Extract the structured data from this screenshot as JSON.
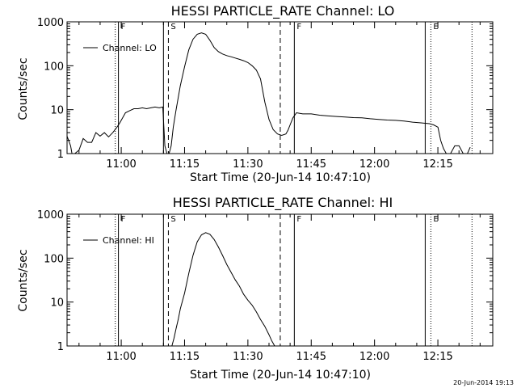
{
  "footer_timestamp": "20-Jun-2014 19:13",
  "chart_data": [
    {
      "type": "line",
      "title": "HESSI PARTICLE_RATE Channel: LO",
      "xlabel": "Start Time (20-Jun-14 10:47:10)",
      "ylabel": "Counts/sec",
      "log_y": true,
      "ylim": [
        1,
        1000
      ],
      "xlim": [
        "10:47:10",
        "12:28:00"
      ],
      "x_ticks": [
        "11:00",
        "11:15",
        "11:30",
        "11:45",
        "12:00",
        "12:15"
      ],
      "y_ticks": [
        "1",
        "10",
        "100",
        "1000"
      ],
      "legend": {
        "position": "top-left",
        "entries": [
          "Channel: LO"
        ]
      },
      "vertical_markers": [
        {
          "time": "10:58:35",
          "style": "dotted"
        },
        {
          "time": "10:59:20",
          "style": "solid",
          "label": "F"
        },
        {
          "time": "11:10:00",
          "style": "solid"
        },
        {
          "time": "11:11:10",
          "style": "dashed",
          "label": "S"
        },
        {
          "time": "11:37:40",
          "style": "dashed"
        },
        {
          "time": "11:41:00",
          "style": "solid",
          "label": "F"
        },
        {
          "time": "12:12:00",
          "style": "solid"
        },
        {
          "time": "12:13:20",
          "style": "dotted",
          "label": "E"
        },
        {
          "time": "12:23:05",
          "style": "dotted"
        }
      ],
      "series": [
        {
          "name": "Channel: LO",
          "x": [
            "10:47:10",
            "10:48:00",
            "10:48:20",
            "10:49:00",
            "10:50:00",
            "10:51:00",
            "10:52:00",
            "10:53:00",
            "10:54:00",
            "10:55:00",
            "10:56:00",
            "10:57:00",
            "10:58:00",
            "10:59:00",
            "10:59:40",
            "11:00:30",
            "11:01:00",
            "11:02:00",
            "11:03:00",
            "11:04:00",
            "11:05:00",
            "11:06:00",
            "11:07:00",
            "11:08:00",
            "11:09:00",
            "11:09:50",
            "11:10:20",
            "11:10:50",
            "11:11:20",
            "11:11:50",
            "11:12:20",
            "11:13:00",
            "11:14:00",
            "11:15:00",
            "11:16:00",
            "11:17:00",
            "11:18:00",
            "11:19:00",
            "11:20:00",
            "11:21:00",
            "11:22:00",
            "11:23:00",
            "11:24:00",
            "11:25:00",
            "11:26:00",
            "11:27:00",
            "11:28:00",
            "11:29:00",
            "11:30:00",
            "11:31:00",
            "11:32:00",
            "11:33:00",
            "11:34:00",
            "11:35:00",
            "11:36:00",
            "11:37:00",
            "11:38:00",
            "11:39:00",
            "11:39:30",
            "11:40:00",
            "11:40:40",
            "11:41:30",
            "11:43:00",
            "11:45:00",
            "11:47:00",
            "11:49:00",
            "11:51:00",
            "11:53:00",
            "11:55:00",
            "11:57:00",
            "11:59:00",
            "12:01:00",
            "12:03:00",
            "12:05:00",
            "12:07:00",
            "12:09:00",
            "12:11:00",
            "12:13:00",
            "12:14:00",
            "12:15:00",
            "12:15:40",
            "12:16:20",
            "12:17:00",
            "12:18:00",
            "12:19:00",
            "12:20:00",
            "12:21:00",
            "12:22:00",
            "12:22:40"
          ],
          "values": [
            2.5,
            1.5,
            1,
            1,
            1.2,
            2.2,
            1.8,
            1.8,
            3,
            2.5,
            3,
            2.4,
            3,
            4,
            5,
            7,
            8.5,
            9.5,
            10.5,
            10.5,
            11,
            10.5,
            11,
            11.5,
            11,
            11.5,
            1.5,
            1,
            1,
            1.5,
            4,
            10,
            35,
            95,
            230,
            400,
            520,
            560,
            520,
            380,
            260,
            210,
            185,
            170,
            160,
            150,
            140,
            130,
            118,
            100,
            80,
            50,
            15,
            6,
            3.5,
            2.8,
            2.6,
            2.8,
            3.4,
            4.5,
            6.5,
            8.5,
            8,
            8,
            7.5,
            7.2,
            7,
            6.8,
            6.6,
            6.5,
            6.2,
            6,
            5.8,
            5.7,
            5.5,
            5.2,
            5,
            4.8,
            4.5,
            4,
            2,
            1.3,
            1,
            1,
            1.5,
            1.5,
            1,
            1,
            1.4
          ]
        }
      ]
    },
    {
      "type": "line",
      "title": "HESSI PARTICLE_RATE Channel: HI",
      "xlabel": "Start Time (20-Jun-14 10:47:10)",
      "ylabel": "Counts/sec",
      "log_y": true,
      "ylim": [
        1,
        1000
      ],
      "xlim": [
        "10:47:10",
        "12:28:00"
      ],
      "x_ticks": [
        "11:00",
        "11:15",
        "11:30",
        "11:45",
        "12:00",
        "12:15"
      ],
      "y_ticks": [
        "1",
        "10",
        "100",
        "1000"
      ],
      "legend": {
        "position": "top-left",
        "entries": [
          "Channel: HI"
        ]
      },
      "vertical_markers": [
        {
          "time": "10:58:35",
          "style": "dotted"
        },
        {
          "time": "10:59:20",
          "style": "solid",
          "label": "F"
        },
        {
          "time": "11:10:00",
          "style": "solid"
        },
        {
          "time": "11:11:10",
          "style": "dashed",
          "label": "S"
        },
        {
          "time": "11:37:40",
          "style": "dashed"
        },
        {
          "time": "11:41:00",
          "style": "solid",
          "label": "F"
        },
        {
          "time": "12:12:00",
          "style": "solid"
        },
        {
          "time": "12:13:20",
          "style": "dotted",
          "label": "E"
        },
        {
          "time": "12:23:05",
          "style": "dotted"
        }
      ],
      "series": [
        {
          "name": "Channel: HI",
          "x": [
            "11:12:00",
            "11:12:30",
            "11:13:00",
            "11:13:30",
            "11:14:00",
            "11:15:00",
            "11:16:00",
            "11:17:00",
            "11:18:00",
            "11:19:00",
            "11:20:00",
            "11:21:00",
            "11:22:00",
            "11:23:00",
            "11:24:00",
            "11:25:00",
            "11:26:00",
            "11:27:00",
            "11:28:00",
            "11:29:00",
            "11:30:00",
            "11:31:00",
            "11:32:00",
            "11:33:00",
            "11:34:00",
            "11:35:00",
            "11:35:40",
            "11:36:20"
          ],
          "values": [
            1,
            1.5,
            2.5,
            4,
            7,
            16,
            45,
            115,
            235,
            340,
            380,
            350,
            265,
            180,
            115,
            72,
            48,
            32,
            23,
            15,
            11,
            8.5,
            6,
            4,
            2.8,
            1.8,
            1.3,
            1
          ]
        }
      ]
    }
  ]
}
